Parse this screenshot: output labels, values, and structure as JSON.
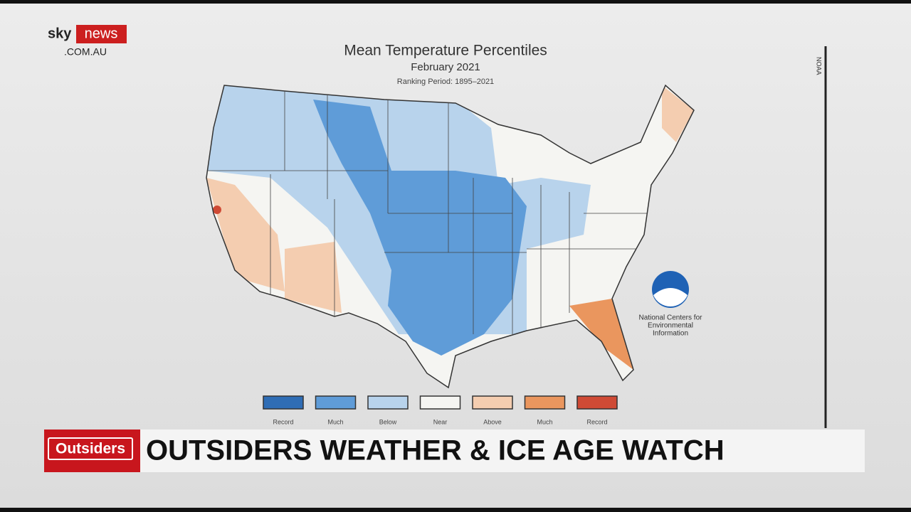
{
  "channel": {
    "logo_sky": "sky",
    "logo_news": "news",
    "domain": ".COM.AU"
  },
  "map": {
    "title": "Mean Temperature Percentiles",
    "subtitle": "February 2021",
    "period": "Ranking Period: 1895–2021",
    "corner_label": "NOAA",
    "legend": [
      {
        "label": "Record",
        "color": "#2f6db5"
      },
      {
        "label": "Much",
        "color": "#5f9cd8"
      },
      {
        "label": "Below",
        "color": "#b8d3ec"
      },
      {
        "label": "Near",
        "color": "#f5f5f2"
      },
      {
        "label": "Above",
        "color": "#f4cdb0"
      },
      {
        "label": "Much",
        "color": "#ea965e"
      },
      {
        "label": "Record",
        "color": "#cf4a35"
      }
    ],
    "agency": [
      "National Centers for",
      "Environmental",
      "Information"
    ]
  },
  "banner": {
    "show": "Outsiders",
    "headline": "OUTSIDERS WEATHER & ICE AGE WATCH"
  }
}
